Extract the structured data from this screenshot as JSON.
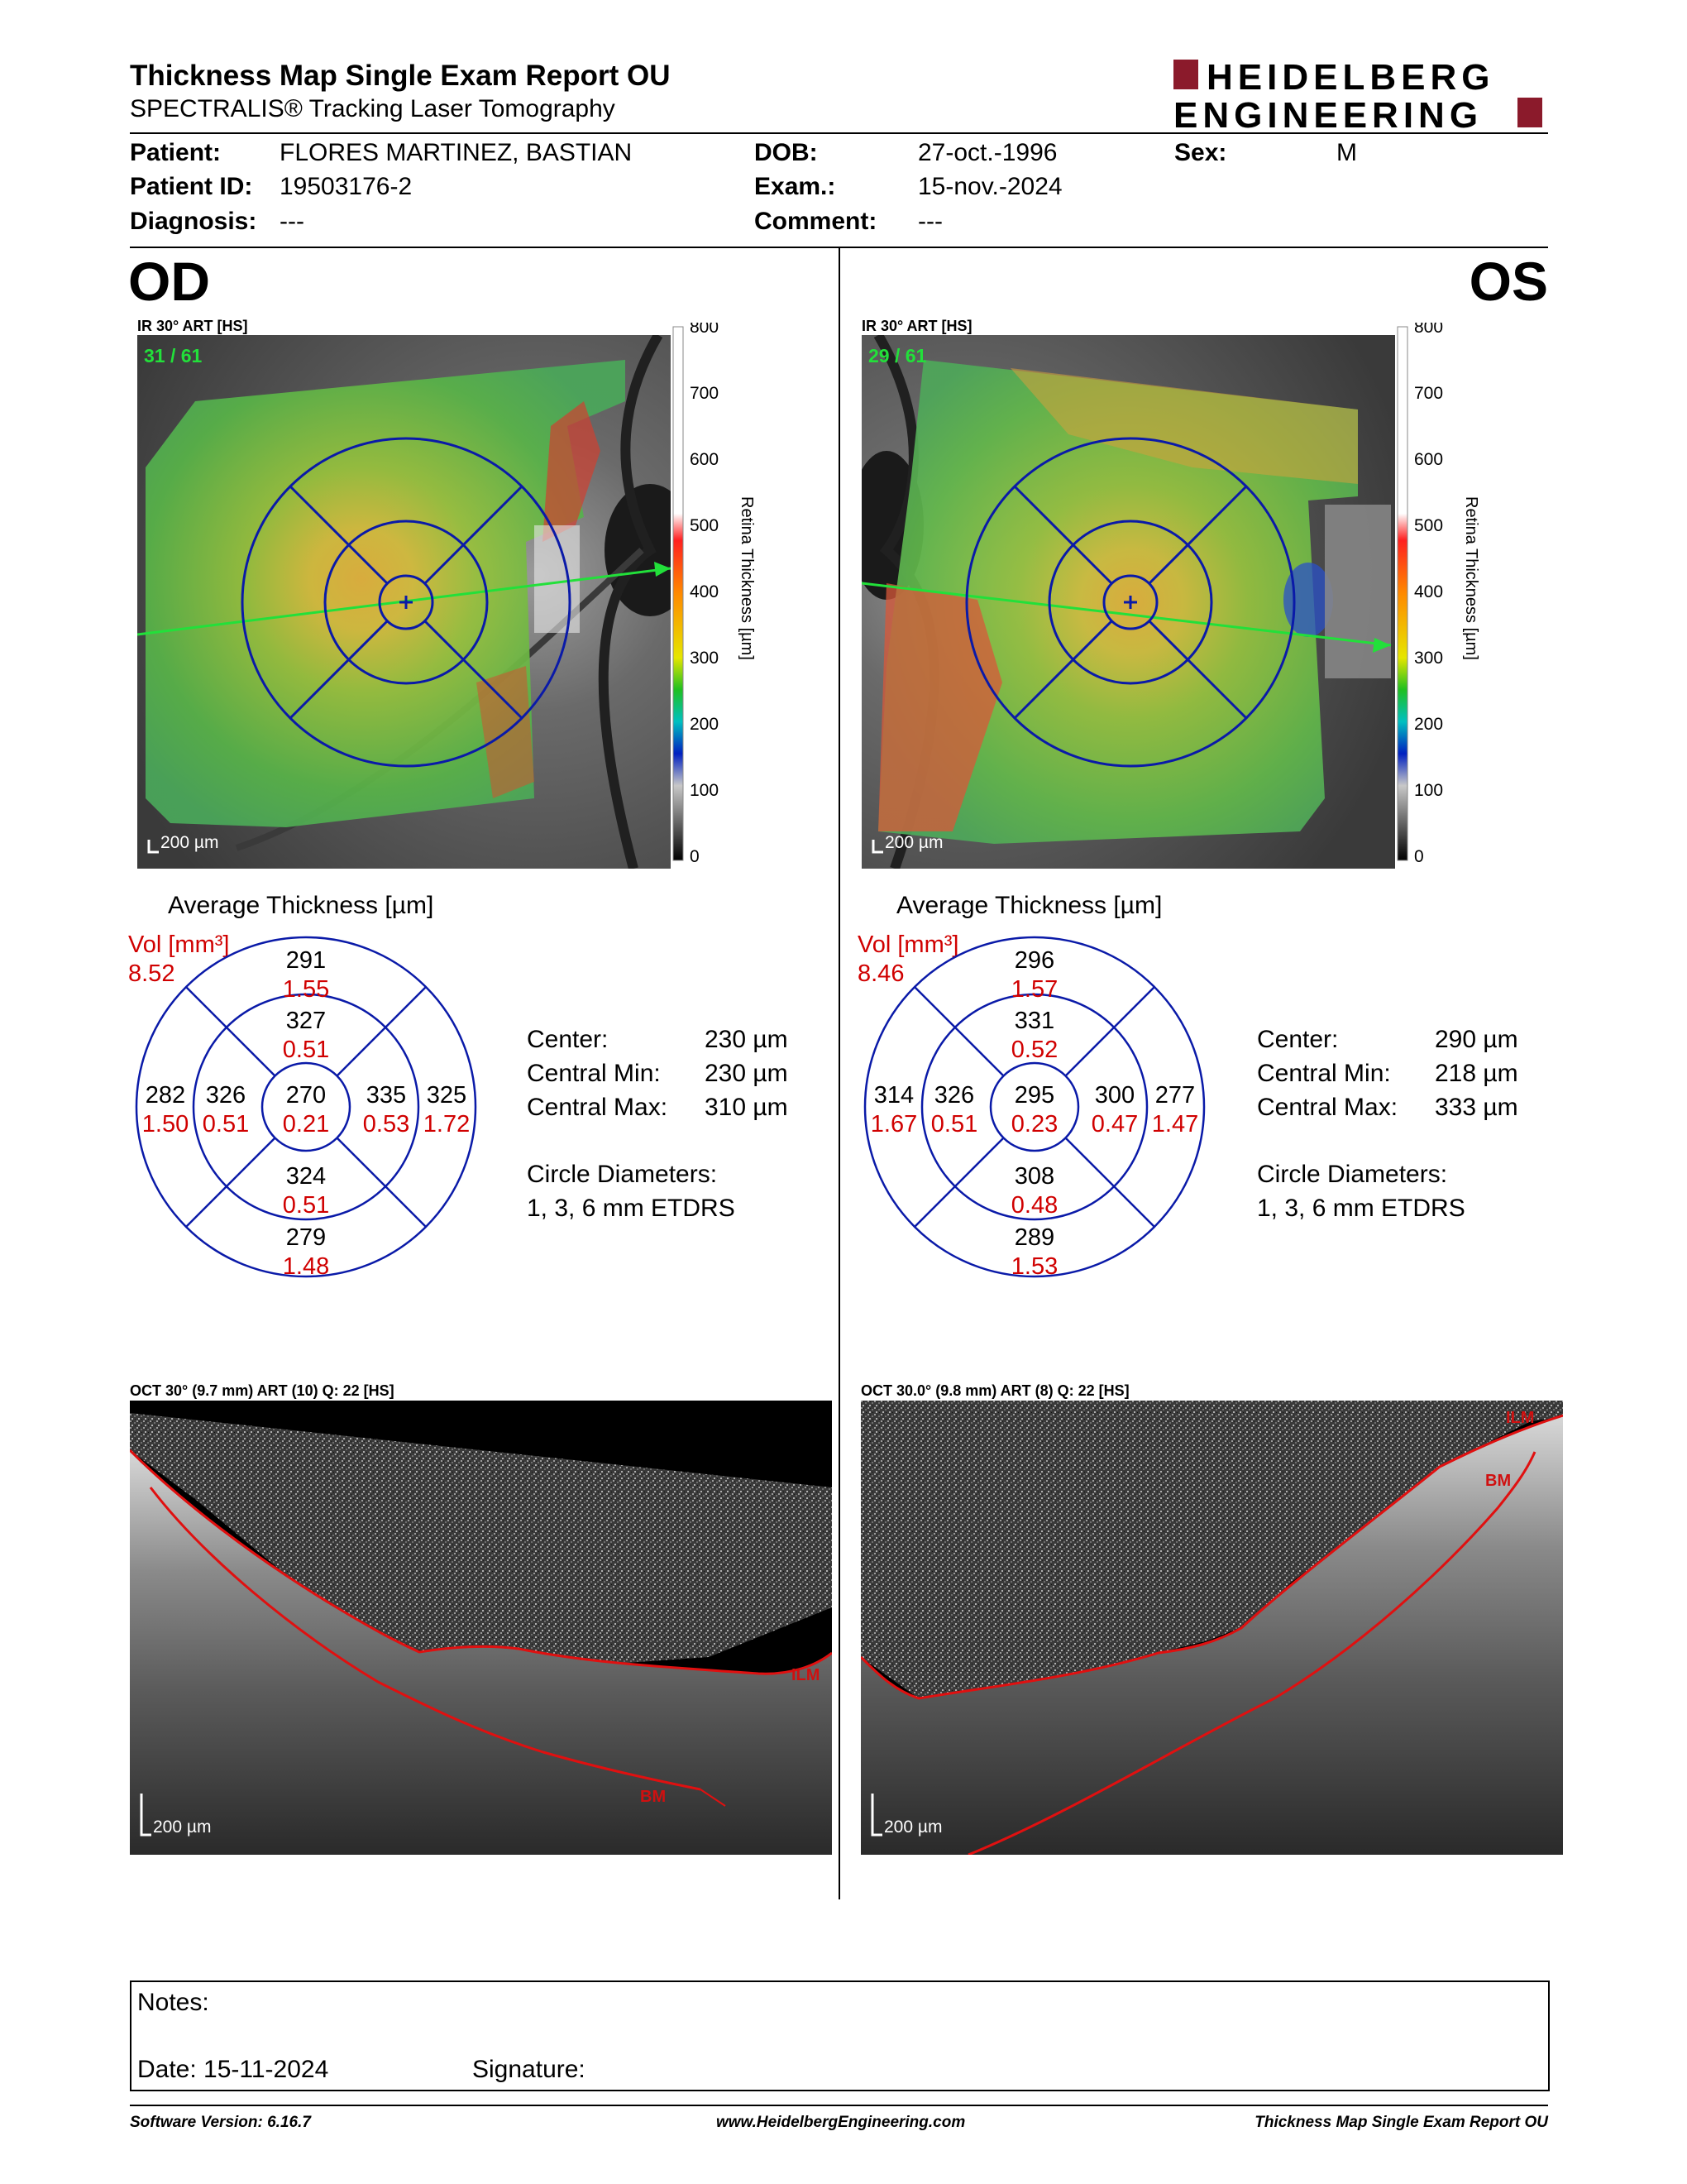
{
  "header": {
    "title": "Thickness Map Single Exam Report OU",
    "subtitle": "SPECTRALIS® Tracking Laser Tomography",
    "logo_line1": "HEIDELBERG",
    "logo_line2": "ENGINEERING"
  },
  "patient": {
    "patient_label": "Patient:",
    "patient_value": "FLORES MARTINEZ, BASTIAN",
    "id_label": "Patient ID:",
    "id_value": "19503176-2",
    "diagnosis_label": "Diagnosis:",
    "diagnosis_value": "---",
    "dob_label": "DOB:",
    "dob_value": "27-oct.-1996",
    "exam_label": "Exam.:",
    "exam_value": "15-nov.-2024",
    "comment_label": "Comment:",
    "comment_value": "---",
    "sex_label": "Sex:",
    "sex_value": "M"
  },
  "colorbar": {
    "ticks": [
      "800",
      "700",
      "600",
      "500",
      "400",
      "300",
      "200",
      "100",
      "0"
    ],
    "label": "Retina Thickness [µm]"
  },
  "od": {
    "eye": "OD",
    "ir_label": "IR 30° ART [HS]",
    "frame_count": "31 / 61",
    "scale": "200 µm",
    "avg_title": "Average Thickness [µm]",
    "vol_label": "Vol [mm³]",
    "vol_value": "8.52",
    "sectors": {
      "outer_top": "291",
      "outer_top_vol": "1.55",
      "inner_top": "327",
      "inner_top_vol": "0.51",
      "outer_left": "282",
      "outer_left_vol": "1.50",
      "inner_left": "326",
      "inner_left_vol": "0.51",
      "center": "270",
      "center_vol": "0.21",
      "inner_right": "335",
      "inner_right_vol": "0.53",
      "outer_right": "325",
      "outer_right_vol": "1.72",
      "inner_bottom": "324",
      "inner_bottom_vol": "0.51",
      "outer_bottom": "279",
      "outer_bottom_vol": "1.48"
    },
    "stats": {
      "center_label": "Center:",
      "center_value": "230 µm",
      "min_label": "Central Min:",
      "min_value": "230 µm",
      "max_label": "Central Max:",
      "max_value": "310 µm",
      "diam_label": "Circle Diameters:",
      "diam_value": "1, 3, 6 mm ETDRS"
    },
    "oct_label": "OCT 30° (9.7 mm) ART (10) Q: 22 [HS]",
    "oct_scale": "200 µm",
    "ilm": "ILM",
    "bm": "BM"
  },
  "os": {
    "eye": "OS",
    "ir_label": "IR 30° ART [HS]",
    "frame_count": "29 / 61",
    "scale": "200 µm",
    "avg_title": "Average Thickness [µm]",
    "vol_label": "Vol [mm³]",
    "vol_value": "8.46",
    "sectors": {
      "outer_top": "296",
      "outer_top_vol": "1.57",
      "inner_top": "331",
      "inner_top_vol": "0.52",
      "outer_left": "314",
      "outer_left_vol": "1.67",
      "inner_left": "326",
      "inner_left_vol": "0.51",
      "center": "295",
      "center_vol": "0.23",
      "inner_right": "300",
      "inner_right_vol": "0.47",
      "outer_right": "277",
      "outer_right_vol": "1.47",
      "inner_bottom": "308",
      "inner_bottom_vol": "0.48",
      "outer_bottom": "289",
      "outer_bottom_vol": "1.53"
    },
    "stats": {
      "center_label": "Center:",
      "center_value": "290 µm",
      "min_label": "Central Min:",
      "min_value": "218 µm",
      "max_label": "Central Max:",
      "max_value": "333 µm",
      "diam_label": "Circle Diameters:",
      "diam_value": "1, 3, 6 mm ETDRS"
    },
    "oct_label": "OCT 30.0° (9.8 mm) ART (8) Q: 22 [HS]",
    "oct_scale": "200 µm",
    "ilm": "ILM",
    "bm": "BM"
  },
  "notes": {
    "notes_label": "Notes:",
    "date_label": "Date: 15-11-2024",
    "signature_label": "Signature:"
  },
  "footer": {
    "software": "Software Version: 6.16.7",
    "website": "www.HeidelbergEngineering.com",
    "report_name": "Thickness Map Single Exam Report OU"
  },
  "colors": {
    "accent_red": "#8b1a2b",
    "etdrs_blue": "#0a1aa8",
    "vol_red": "#d00000",
    "scan_arrow": "#22e03a"
  }
}
